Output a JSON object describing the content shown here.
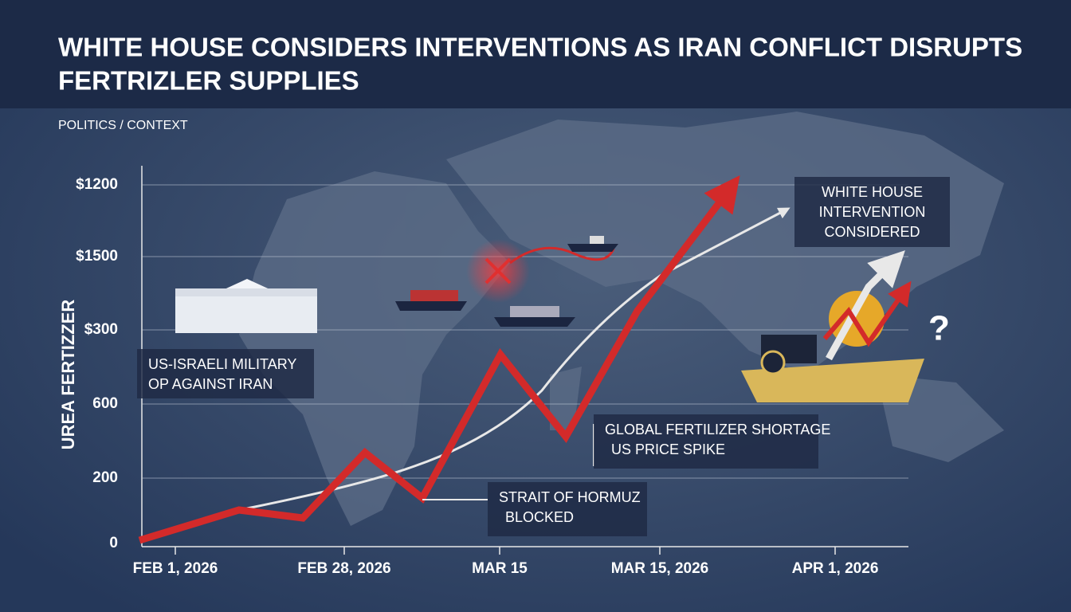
{
  "header": {
    "title": "WHITE HOUSE CONSIDERS INTERVENTIONS AS IRAN CONFLICT DISRUPTS FERTRIZLER SUPPLIES",
    "section": "POLITICS / CONTEXT"
  },
  "axis": {
    "y_title": "UREA FERTIZZER",
    "y_labels": [
      "$1200",
      "$1500",
      "$300",
      "600",
      "200",
      "0"
    ],
    "x_labels": [
      "FEB 1, 2026",
      "FEB 28, 2026",
      "MAR 15",
      "MAR 15, 2026",
      "APR 1, 2026"
    ]
  },
  "callouts": [
    {
      "lines": [
        "US-ISRAELI MILITARY",
        "OP AGAINST IRAN"
      ]
    },
    {
      "lines": [
        "GLOBAL FERTILIZER SHORTAGE",
        "US PRICE SPIKE"
      ]
    },
    {
      "lines": [
        "STRAIT OF HORMUZ",
        "BLOCKED"
      ]
    },
    {
      "lines": [
        "WHITE HOUSE",
        "INTERVENTION",
        "CONSIDERED"
      ]
    }
  ]
}
